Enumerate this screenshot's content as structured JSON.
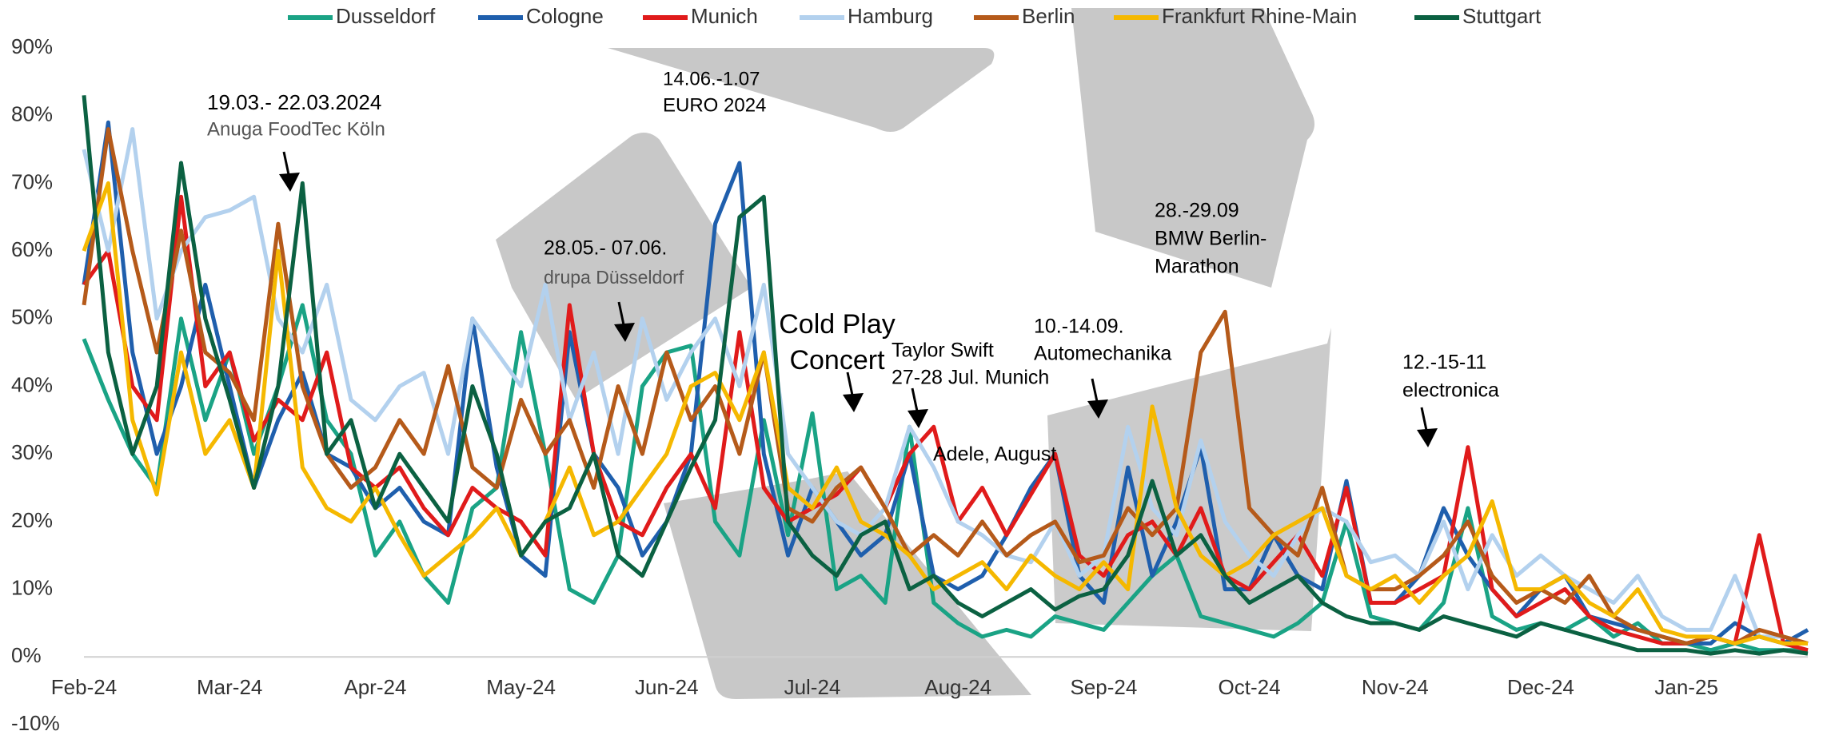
{
  "chart_data": {
    "type": "line",
    "categories": [
      "Feb-24",
      null,
      null,
      null,
      null,
      null,
      "Mar-24",
      null,
      null,
      null,
      null,
      null,
      "Apr-24",
      null,
      null,
      null,
      null,
      null,
      "May-24",
      null,
      null,
      null,
      null,
      null,
      "Jun-24",
      null,
      null,
      null,
      null,
      null,
      "Jul-24",
      null,
      null,
      null,
      null,
      null,
      "Aug-24",
      null,
      null,
      null,
      null,
      null,
      "Sep-24",
      null,
      null,
      null,
      null,
      null,
      "Oct-24",
      null,
      null,
      null,
      null,
      null,
      "Nov-24",
      null,
      null,
      null,
      null,
      null,
      "Dec-24",
      null,
      null,
      null,
      null,
      null,
      "Jan-25",
      null,
      null,
      null,
      null,
      null
    ],
    "ylim": [
      -10,
      90
    ],
    "yticks": [
      {
        "value": -10,
        "label": "-10%"
      },
      {
        "value": 0,
        "label": "0%"
      },
      {
        "value": 10,
        "label": "10%"
      },
      {
        "value": 20,
        "label": "20%"
      },
      {
        "value": 30,
        "label": "30%"
      },
      {
        "value": 40,
        "label": "40%"
      },
      {
        "value": 50,
        "label": "50%"
      },
      {
        "value": 60,
        "label": "60%"
      },
      {
        "value": 70,
        "label": "70%"
      },
      {
        "value": 80,
        "label": "80%"
      },
      {
        "value": 90,
        "label": "90%"
      }
    ],
    "grid": false,
    "legend": "top",
    "series": [
      {
        "name": "Dusseldorf",
        "color": "#1aa385",
        "values": [
          47,
          38,
          30,
          25,
          50,
          35,
          45,
          30,
          40,
          52,
          35,
          30,
          15,
          20,
          12,
          8,
          22,
          25,
          48,
          30,
          10,
          8,
          15,
          40,
          45,
          46,
          20,
          15,
          35,
          18,
          36,
          10,
          12,
          8,
          34,
          8,
          5,
          3,
          4,
          3,
          6,
          5,
          4,
          8,
          12,
          15,
          6,
          5,
          4,
          3,
          5,
          8,
          20,
          6,
          5,
          4,
          8,
          22,
          6,
          4,
          5,
          4,
          6,
          3,
          5,
          2,
          2,
          1,
          2,
          1,
          1,
          1
        ]
      },
      {
        "name": "Cologne",
        "color": "#1f5fad",
        "values": [
          55,
          79,
          45,
          30,
          40,
          55,
          40,
          25,
          35,
          42,
          30,
          28,
          22,
          25,
          20,
          18,
          50,
          28,
          15,
          12,
          48,
          30,
          25,
          15,
          20,
          30,
          64,
          73,
          30,
          15,
          25,
          20,
          15,
          18,
          30,
          12,
          10,
          12,
          18,
          25,
          30,
          12,
          8,
          28,
          12,
          20,
          31,
          10,
          10,
          18,
          12,
          10,
          26,
          8,
          8,
          12,
          22,
          15,
          10,
          6,
          10,
          12,
          6,
          5,
          4,
          3,
          2,
          2,
          5,
          3,
          2,
          4
        ]
      },
      {
        "name": "Munich",
        "color": "#e01b1b",
        "values": [
          55,
          60,
          40,
          35,
          68,
          40,
          45,
          32,
          38,
          35,
          45,
          28,
          25,
          28,
          22,
          18,
          25,
          22,
          20,
          15,
          52,
          30,
          20,
          18,
          25,
          30,
          22,
          48,
          25,
          20,
          22,
          24,
          28,
          22,
          30,
          34,
          20,
          25,
          18,
          24,
          30,
          15,
          12,
          18,
          20,
          15,
          22,
          12,
          10,
          14,
          18,
          12,
          25,
          8,
          8,
          10,
          12,
          31,
          10,
          6,
          8,
          10,
          6,
          4,
          3,
          2,
          2,
          3,
          2,
          18,
          2,
          1
        ]
      },
      {
        "name": "Hamburg",
        "color": "#b3d1ee",
        "values": [
          75,
          60,
          78,
          50,
          60,
          65,
          66,
          68,
          50,
          45,
          55,
          38,
          35,
          40,
          42,
          30,
          50,
          45,
          40,
          55,
          35,
          45,
          30,
          50,
          38,
          45,
          50,
          40,
          55,
          30,
          25,
          20,
          18,
          22,
          34,
          28,
          20,
          18,
          15,
          14,
          20,
          12,
          15,
          34,
          22,
          18,
          32,
          20,
          15,
          12,
          18,
          22,
          20,
          14,
          15,
          12,
          20,
          10,
          18,
          12,
          15,
          12,
          10,
          8,
          12,
          6,
          4,
          4,
          12,
          3,
          3,
          2
        ]
      },
      {
        "name": "Berlin",
        "color": "#b55a1a",
        "values": [
          52,
          78,
          60,
          45,
          63,
          45,
          42,
          35,
          64,
          40,
          30,
          25,
          28,
          35,
          30,
          43,
          28,
          25,
          38,
          30,
          35,
          25,
          40,
          30,
          45,
          35,
          40,
          30,
          45,
          22,
          20,
          25,
          28,
          22,
          15,
          18,
          15,
          20,
          15,
          18,
          20,
          14,
          15,
          22,
          18,
          22,
          45,
          51,
          22,
          18,
          15,
          25,
          12,
          10,
          10,
          12,
          15,
          20,
          12,
          8,
          10,
          8,
          12,
          6,
          4,
          3,
          2,
          3,
          2,
          4,
          3,
          2
        ]
      },
      {
        "name": "Frankfurt Rhine-Main",
        "color": "#f5b800",
        "values": [
          60,
          70,
          35,
          24,
          45,
          30,
          35,
          25,
          60,
          28,
          22,
          20,
          25,
          18,
          12,
          15,
          18,
          22,
          15,
          20,
          28,
          18,
          20,
          25,
          30,
          40,
          42,
          35,
          45,
          25,
          22,
          28,
          20,
          18,
          15,
          10,
          12,
          14,
          10,
          15,
          12,
          10,
          14,
          10,
          37,
          22,
          15,
          12,
          14,
          18,
          20,
          22,
          12,
          10,
          12,
          8,
          12,
          15,
          23,
          10,
          10,
          12,
          8,
          6,
          10,
          4,
          3,
          3,
          2,
          3,
          2,
          2
        ]
      },
      {
        "name": "Stuttgart",
        "color": "#0b6142",
        "values": [
          83,
          45,
          30,
          40,
          73,
          50,
          38,
          25,
          40,
          70,
          30,
          35,
          22,
          30,
          25,
          20,
          40,
          30,
          15,
          20,
          22,
          30,
          15,
          12,
          20,
          28,
          35,
          65,
          68,
          20,
          15,
          12,
          18,
          20,
          10,
          12,
          8,
          6,
          8,
          10,
          7,
          9,
          10,
          15,
          26,
          15,
          18,
          12,
          8,
          10,
          12,
          8,
          6,
          5,
          5,
          4,
          6,
          5,
          4,
          3,
          5,
          4,
          3,
          2,
          1,
          1,
          1,
          0.5,
          1,
          0.5,
          1,
          0.5
        ]
      }
    ],
    "annotations": [
      {
        "lines": [
          "19.03.- 22.03.2024",
          "Anuga FoodTec Köln"
        ]
      },
      {
        "lines": [
          "14.06.-1.07",
          "EURO 2024"
        ]
      },
      {
        "lines": [
          "28.05.- 07.06.",
          "drupa Düsseldorf"
        ]
      },
      {
        "lines": [
          "Cold Play",
          "Concert"
        ]
      },
      {
        "lines": [
          "Taylor Swift",
          "27-28 Jul. Munich"
        ]
      },
      {
        "lines": [
          "Adele, August"
        ]
      },
      {
        "lines": [
          "10.-14.09.",
          "Automechanika"
        ]
      },
      {
        "lines": [
          "28.-29.09",
          "BMW Berlin-",
          "Marathon"
        ]
      },
      {
        "lines": [
          "12.-15-11",
          "electronica"
        ]
      }
    ]
  }
}
